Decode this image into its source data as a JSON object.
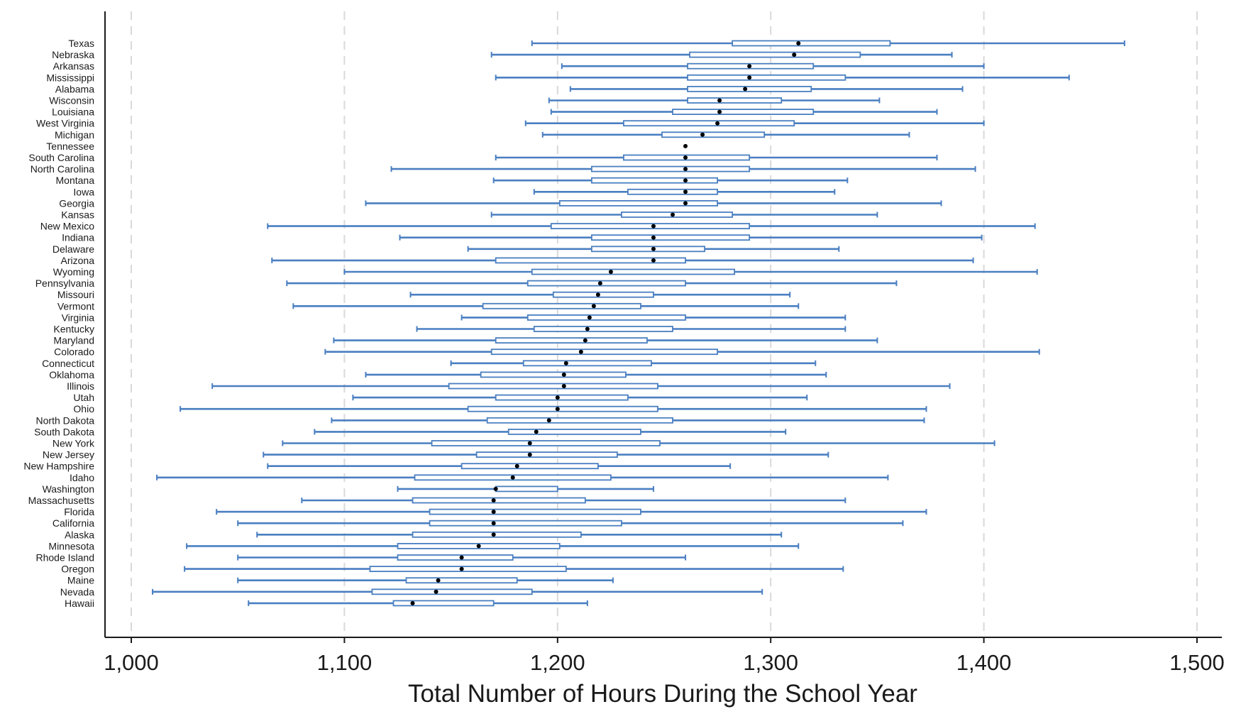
{
  "chart_data": {
    "type": "boxplot",
    "orientation": "horizontal",
    "title": "",
    "xlabel": "Total Number of Hours During the School Year",
    "ylabel": "",
    "xlim": [
      1000,
      1500
    ],
    "xticks": [
      1000,
      1100,
      1200,
      1300,
      1400,
      1500
    ],
    "xtick_labels": [
      "1,000",
      "1,100",
      "1,200",
      "1,300",
      "1,400",
      "1,500"
    ],
    "grid": "vertical dashed",
    "colors": {
      "box": "#4a7fc1",
      "median": "#000000",
      "grid": "#d9d9d9",
      "axis": "#1a1a1a"
    },
    "series": [
      {
        "name": "Texas",
        "min": 1188,
        "q1": 1282,
        "median": 1313,
        "q3": 1356,
        "max": 1466
      },
      {
        "name": "Nebraska",
        "min": 1169,
        "q1": 1262,
        "median": 1311,
        "q3": 1342,
        "max": 1385
      },
      {
        "name": "Arkansas",
        "min": 1202,
        "q1": 1261,
        "median": 1290,
        "q3": 1320,
        "max": 1400
      },
      {
        "name": "Mississippi",
        "min": 1171,
        "q1": 1261,
        "median": 1290,
        "q3": 1335,
        "max": 1440
      },
      {
        "name": "Alabama",
        "min": 1206,
        "q1": 1261,
        "median": 1288,
        "q3": 1319,
        "max": 1390
      },
      {
        "name": "Wisconsin",
        "min": 1196,
        "q1": 1261,
        "median": 1276,
        "q3": 1305,
        "max": 1351
      },
      {
        "name": "Louisiana",
        "min": 1197,
        "q1": 1254,
        "median": 1276,
        "q3": 1320,
        "max": 1378
      },
      {
        "name": "West Virginia",
        "min": 1185,
        "q1": 1231,
        "median": 1275,
        "q3": 1311,
        "max": 1400
      },
      {
        "name": "Michigan",
        "min": 1193,
        "q1": 1249,
        "median": 1268,
        "q3": 1297,
        "max": 1365
      },
      {
        "name": "Tennessee",
        "min": 1260,
        "q1": 1260,
        "median": 1260,
        "q3": 1260,
        "max": 1260
      },
      {
        "name": "South Carolina",
        "min": 1171,
        "q1": 1231,
        "median": 1260,
        "q3": 1290,
        "max": 1378
      },
      {
        "name": "North Carolina",
        "min": 1122,
        "q1": 1216,
        "median": 1260,
        "q3": 1290,
        "max": 1396
      },
      {
        "name": "Montana",
        "min": 1170,
        "q1": 1216,
        "median": 1260,
        "q3": 1275,
        "max": 1336
      },
      {
        "name": "Iowa",
        "min": 1189,
        "q1": 1233,
        "median": 1260,
        "q3": 1275,
        "max": 1330
      },
      {
        "name": "Georgia",
        "min": 1110,
        "q1": 1201,
        "median": 1260,
        "q3": 1275,
        "max": 1380
      },
      {
        "name": "Kansas",
        "min": 1169,
        "q1": 1230,
        "median": 1254,
        "q3": 1282,
        "max": 1350
      },
      {
        "name": "New Mexico",
        "min": 1064,
        "q1": 1197,
        "median": 1245,
        "q3": 1290,
        "max": 1424
      },
      {
        "name": "Indiana",
        "min": 1126,
        "q1": 1216,
        "median": 1245,
        "q3": 1290,
        "max": 1399
      },
      {
        "name": "Delaware",
        "min": 1158,
        "q1": 1216,
        "median": 1245,
        "q3": 1269,
        "max": 1332
      },
      {
        "name": "Arizona",
        "min": 1066,
        "q1": 1171,
        "median": 1245,
        "q3": 1260,
        "max": 1395
      },
      {
        "name": "Wyoming",
        "min": 1100,
        "q1": 1188,
        "median": 1225,
        "q3": 1283,
        "max": 1425
      },
      {
        "name": "Pennsylvania",
        "min": 1073,
        "q1": 1186,
        "median": 1220,
        "q3": 1260,
        "max": 1359
      },
      {
        "name": "Missouri",
        "min": 1131,
        "q1": 1198,
        "median": 1219,
        "q3": 1245,
        "max": 1309
      },
      {
        "name": "Vermont",
        "min": 1076,
        "q1": 1165,
        "median": 1217,
        "q3": 1239,
        "max": 1313
      },
      {
        "name": "Virginia",
        "min": 1155,
        "q1": 1186,
        "median": 1215,
        "q3": 1260,
        "max": 1335
      },
      {
        "name": "Kentucky",
        "min": 1134,
        "q1": 1189,
        "median": 1214,
        "q3": 1254,
        "max": 1335
      },
      {
        "name": "Maryland",
        "min": 1095,
        "q1": 1171,
        "median": 1213,
        "q3": 1242,
        "max": 1350
      },
      {
        "name": "Colorado",
        "min": 1091,
        "q1": 1169,
        "median": 1211,
        "q3": 1275,
        "max": 1426
      },
      {
        "name": "Connecticut",
        "min": 1150,
        "q1": 1184,
        "median": 1204,
        "q3": 1244,
        "max": 1321
      },
      {
        "name": "Oklahoma",
        "min": 1110,
        "q1": 1164,
        "median": 1203,
        "q3": 1232,
        "max": 1326
      },
      {
        "name": "Illinois",
        "min": 1038,
        "q1": 1149,
        "median": 1203,
        "q3": 1247,
        "max": 1384
      },
      {
        "name": "Utah",
        "min": 1104,
        "q1": 1171,
        "median": 1200,
        "q3": 1233,
        "max": 1317
      },
      {
        "name": "Ohio",
        "min": 1023,
        "q1": 1158,
        "median": 1200,
        "q3": 1247,
        "max": 1373
      },
      {
        "name": "North Dakota",
        "min": 1094,
        "q1": 1167,
        "median": 1196,
        "q3": 1254,
        "max": 1372
      },
      {
        "name": "South Dakota",
        "min": 1086,
        "q1": 1177,
        "median": 1190,
        "q3": 1239,
        "max": 1307
      },
      {
        "name": "New York",
        "min": 1071,
        "q1": 1141,
        "median": 1187,
        "q3": 1248,
        "max": 1405
      },
      {
        "name": "New Jersey",
        "min": 1062,
        "q1": 1162,
        "median": 1187,
        "q3": 1228,
        "max": 1327
      },
      {
        "name": "New Hampshire",
        "min": 1064,
        "q1": 1155,
        "median": 1181,
        "q3": 1219,
        "max": 1281
      },
      {
        "name": "Idaho",
        "min": 1012,
        "q1": 1133,
        "median": 1179,
        "q3": 1225,
        "max": 1355
      },
      {
        "name": "Washington",
        "min": 1125,
        "q1": 1171,
        "median": 1171,
        "q3": 1200,
        "max": 1245
      },
      {
        "name": "Massachusetts",
        "min": 1080,
        "q1": 1132,
        "median": 1170,
        "q3": 1213,
        "max": 1335
      },
      {
        "name": "Florida",
        "min": 1040,
        "q1": 1140,
        "median": 1170,
        "q3": 1239,
        "max": 1373
      },
      {
        "name": "California",
        "min": 1050,
        "q1": 1140,
        "median": 1170,
        "q3": 1230,
        "max": 1362
      },
      {
        "name": "Alaska",
        "min": 1059,
        "q1": 1132,
        "median": 1170,
        "q3": 1211,
        "max": 1305
      },
      {
        "name": "Minnesota",
        "min": 1026,
        "q1": 1125,
        "median": 1163,
        "q3": 1201,
        "max": 1313
      },
      {
        "name": "Rhode Island",
        "min": 1050,
        "q1": 1125,
        "median": 1155,
        "q3": 1179,
        "max": 1260
      },
      {
        "name": "Oregon",
        "min": 1025,
        "q1": 1112,
        "median": 1155,
        "q3": 1204,
        "max": 1334
      },
      {
        "name": "Maine",
        "min": 1050,
        "q1": 1129,
        "median": 1144,
        "q3": 1181,
        "max": 1226
      },
      {
        "name": "Nevada",
        "min": 1010,
        "q1": 1113,
        "median": 1143,
        "q3": 1188,
        "max": 1296
      },
      {
        "name": "Hawaii",
        "min": 1055,
        "q1": 1123,
        "median": 1132,
        "q3": 1170,
        "max": 1214
      }
    ]
  }
}
